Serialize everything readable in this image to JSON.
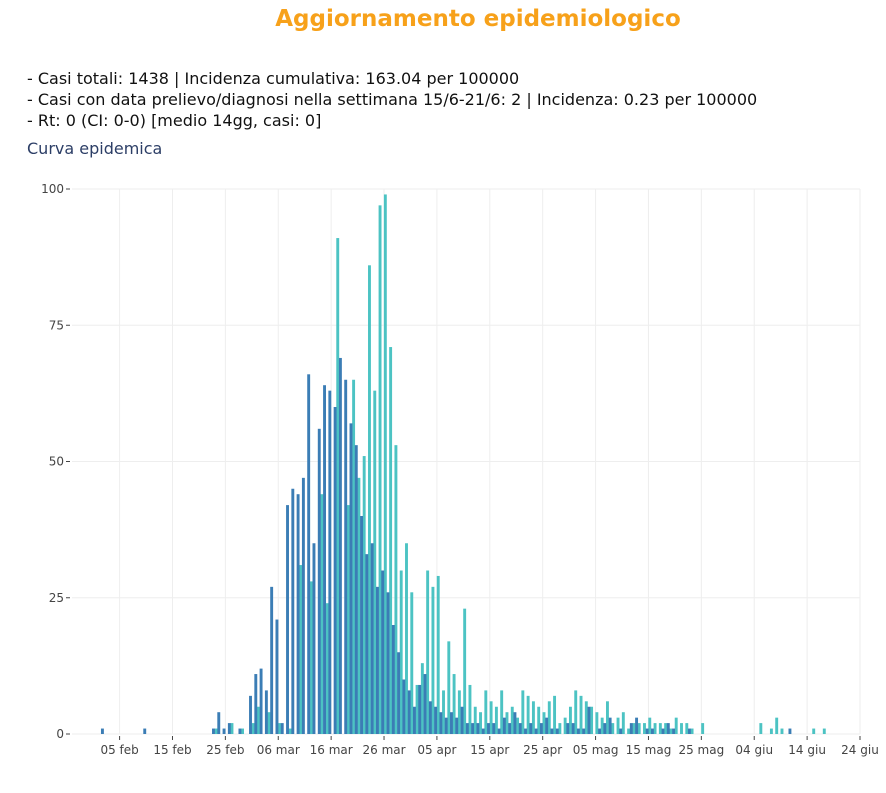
{
  "page": {
    "title": "Aggiornamento epidemiologico",
    "stats": [
      "- Casi totali: 1438 | Incidenza cumulativa: 163.04 per 100000",
      "- Casi con data prelievo/diagnosi nella settimana 15/6-21/6: 2 | Incidenza: 0.23 per 100000",
      "- Rt: 0 (CI: 0-0) [medio 14gg, casi: 0]"
    ],
    "subtitle": "Curva epidemica"
  },
  "colors": {
    "title": "#f7a11a",
    "series_a": "#3b7db5",
    "series_b": "#4cc3c3",
    "grid": "#eeeeee",
    "axis_text": "#444444"
  },
  "chart_data": {
    "type": "bar",
    "title": "",
    "xlabel": "",
    "ylabel": "",
    "ylim": [
      0,
      100
    ],
    "xlim": [
      "2020-01-27",
      "2020-06-24"
    ],
    "grid": true,
    "y_ticks": [
      0,
      25,
      50,
      75,
      100
    ],
    "x_ticks": [
      {
        "date": "2020-02-05",
        "label": "05 feb"
      },
      {
        "date": "2020-02-15",
        "label": "15 feb"
      },
      {
        "date": "2020-02-25",
        "label": "25 feb"
      },
      {
        "date": "2020-03-06",
        "label": "06 mar"
      },
      {
        "date": "2020-03-16",
        "label": "16 mar"
      },
      {
        "date": "2020-03-26",
        "label": "26 mar"
      },
      {
        "date": "2020-04-05",
        "label": "05 apr"
      },
      {
        "date": "2020-04-15",
        "label": "15 apr"
      },
      {
        "date": "2020-04-25",
        "label": "25 apr"
      },
      {
        "date": "2020-05-05",
        "label": "05 mag"
      },
      {
        "date": "2020-05-15",
        "label": "15 mag"
      },
      {
        "date": "2020-05-25",
        "label": "25 mag"
      },
      {
        "date": "2020-06-04",
        "label": "04 giu"
      },
      {
        "date": "2020-06-14",
        "label": "14 giu"
      },
      {
        "date": "2020-06-24",
        "label": "24 giu"
      }
    ],
    "series": [
      {
        "values": [
          [
            "2020-02-02",
            1
          ],
          [
            "2020-02-10",
            1
          ],
          [
            "2020-02-23",
            1
          ],
          [
            "2020-02-24",
            4
          ],
          [
            "2020-02-25",
            1
          ],
          [
            "2020-02-26",
            2
          ],
          [
            "2020-02-28",
            1
          ],
          [
            "2020-03-01",
            7
          ],
          [
            "2020-03-02",
            11
          ],
          [
            "2020-03-03",
            12
          ],
          [
            "2020-03-04",
            8
          ],
          [
            "2020-03-05",
            27
          ],
          [
            "2020-03-06",
            21
          ],
          [
            "2020-03-07",
            2
          ],
          [
            "2020-03-08",
            42
          ],
          [
            "2020-03-09",
            45
          ],
          [
            "2020-03-10",
            44
          ],
          [
            "2020-03-11",
            47
          ],
          [
            "2020-03-12",
            66
          ],
          [
            "2020-03-13",
            35
          ],
          [
            "2020-03-14",
            56
          ],
          [
            "2020-03-15",
            64
          ],
          [
            "2020-03-16",
            63
          ],
          [
            "2020-03-17",
            60
          ],
          [
            "2020-03-18",
            69
          ],
          [
            "2020-03-19",
            65
          ],
          [
            "2020-03-20",
            57
          ],
          [
            "2020-03-21",
            53
          ],
          [
            "2020-03-22",
            40
          ],
          [
            "2020-03-23",
            33
          ],
          [
            "2020-03-24",
            35
          ],
          [
            "2020-03-25",
            27
          ],
          [
            "2020-03-26",
            30
          ],
          [
            "2020-03-27",
            26
          ],
          [
            "2020-03-28",
            20
          ],
          [
            "2020-03-29",
            15
          ],
          [
            "2020-03-30",
            10
          ],
          [
            "2020-03-31",
            8
          ],
          [
            "2020-04-01",
            5
          ],
          [
            "2020-04-02",
            9
          ],
          [
            "2020-04-03",
            11
          ],
          [
            "2020-04-04",
            6
          ],
          [
            "2020-04-05",
            5
          ],
          [
            "2020-04-06",
            4
          ],
          [
            "2020-04-07",
            3
          ],
          [
            "2020-04-08",
            4
          ],
          [
            "2020-04-09",
            3
          ],
          [
            "2020-04-10",
            5
          ],
          [
            "2020-04-11",
            2
          ],
          [
            "2020-04-12",
            2
          ],
          [
            "2020-04-13",
            2
          ],
          [
            "2020-04-14",
            1
          ],
          [
            "2020-04-15",
            2
          ],
          [
            "2020-04-16",
            2
          ],
          [
            "2020-04-17",
            1
          ],
          [
            "2020-04-18",
            3
          ],
          [
            "2020-04-19",
            2
          ],
          [
            "2020-04-20",
            4
          ],
          [
            "2020-04-21",
            2
          ],
          [
            "2020-04-22",
            1
          ],
          [
            "2020-04-23",
            2
          ],
          [
            "2020-04-24",
            1
          ],
          [
            "2020-04-25",
            2
          ],
          [
            "2020-04-26",
            3
          ],
          [
            "2020-04-27",
            1
          ],
          [
            "2020-04-28",
            1
          ],
          [
            "2020-04-30",
            2
          ],
          [
            "2020-05-01",
            2
          ],
          [
            "2020-05-02",
            1
          ],
          [
            "2020-05-03",
            1
          ],
          [
            "2020-05-04",
            5
          ],
          [
            "2020-05-06",
            1
          ],
          [
            "2020-05-07",
            2
          ],
          [
            "2020-05-08",
            3
          ],
          [
            "2020-05-10",
            1
          ],
          [
            "2020-05-12",
            2
          ],
          [
            "2020-05-13",
            3
          ],
          [
            "2020-05-15",
            1
          ],
          [
            "2020-05-16",
            1
          ],
          [
            "2020-05-18",
            1
          ],
          [
            "2020-05-19",
            2
          ],
          [
            "2020-05-20",
            1
          ],
          [
            "2020-05-23",
            1
          ],
          [
            "2020-06-11",
            1
          ]
        ]
      },
      {
        "values": [
          [
            "2020-02-23",
            1
          ],
          [
            "2020-02-26",
            2
          ],
          [
            "2020-02-28",
            1
          ],
          [
            "2020-03-01",
            2
          ],
          [
            "2020-03-02",
            5
          ],
          [
            "2020-03-04",
            4
          ],
          [
            "2020-03-06",
            2
          ],
          [
            "2020-03-08",
            1
          ],
          [
            "2020-03-10",
            31
          ],
          [
            "2020-03-12",
            28
          ],
          [
            "2020-03-14",
            44
          ],
          [
            "2020-03-15",
            24
          ],
          [
            "2020-03-17",
            91
          ],
          [
            "2020-03-19",
            42
          ],
          [
            "2020-03-20",
            65
          ],
          [
            "2020-03-21",
            47
          ],
          [
            "2020-03-22",
            51
          ],
          [
            "2020-03-23",
            86
          ],
          [
            "2020-03-24",
            63
          ],
          [
            "2020-03-25",
            97
          ],
          [
            "2020-03-26",
            99
          ],
          [
            "2020-03-27",
            71
          ],
          [
            "2020-03-28",
            53
          ],
          [
            "2020-03-29",
            30
          ],
          [
            "2020-03-30",
            35
          ],
          [
            "2020-03-31",
            26
          ],
          [
            "2020-04-01",
            9
          ],
          [
            "2020-04-02",
            13
          ],
          [
            "2020-04-03",
            30
          ],
          [
            "2020-04-04",
            27
          ],
          [
            "2020-04-05",
            29
          ],
          [
            "2020-04-06",
            8
          ],
          [
            "2020-04-07",
            17
          ],
          [
            "2020-04-08",
            11
          ],
          [
            "2020-04-09",
            8
          ],
          [
            "2020-04-10",
            23
          ],
          [
            "2020-04-11",
            9
          ],
          [
            "2020-04-12",
            5
          ],
          [
            "2020-04-13",
            4
          ],
          [
            "2020-04-14",
            8
          ],
          [
            "2020-04-15",
            6
          ],
          [
            "2020-04-16",
            5
          ],
          [
            "2020-04-17",
            8
          ],
          [
            "2020-04-18",
            4
          ],
          [
            "2020-04-19",
            5
          ],
          [
            "2020-04-20",
            3
          ],
          [
            "2020-04-21",
            8
          ],
          [
            "2020-04-22",
            7
          ],
          [
            "2020-04-23",
            6
          ],
          [
            "2020-04-24",
            5
          ],
          [
            "2020-04-25",
            4
          ],
          [
            "2020-04-26",
            6
          ],
          [
            "2020-04-27",
            7
          ],
          [
            "2020-04-28",
            2
          ],
          [
            "2020-04-29",
            3
          ],
          [
            "2020-04-30",
            5
          ],
          [
            "2020-05-01",
            8
          ],
          [
            "2020-05-02",
            7
          ],
          [
            "2020-05-03",
            6
          ],
          [
            "2020-05-04",
            5
          ],
          [
            "2020-05-05",
            4
          ],
          [
            "2020-05-06",
            3
          ],
          [
            "2020-05-07",
            6
          ],
          [
            "2020-05-08",
            2
          ],
          [
            "2020-05-09",
            3
          ],
          [
            "2020-05-10",
            4
          ],
          [
            "2020-05-11",
            1
          ],
          [
            "2020-05-12",
            2
          ],
          [
            "2020-05-13",
            2
          ],
          [
            "2020-05-14",
            2
          ],
          [
            "2020-05-15",
            3
          ],
          [
            "2020-05-16",
            2
          ],
          [
            "2020-05-17",
            2
          ],
          [
            "2020-05-18",
            2
          ],
          [
            "2020-05-19",
            1
          ],
          [
            "2020-05-20",
            3
          ],
          [
            "2020-05-21",
            2
          ],
          [
            "2020-05-22",
            2
          ],
          [
            "2020-05-23",
            1
          ],
          [
            "2020-05-25",
            2
          ],
          [
            "2020-06-05",
            2
          ],
          [
            "2020-06-07",
            1
          ],
          [
            "2020-06-08",
            3
          ],
          [
            "2020-06-09",
            1
          ],
          [
            "2020-06-15",
            1
          ],
          [
            "2020-06-17",
            1
          ]
        ]
      }
    ]
  }
}
